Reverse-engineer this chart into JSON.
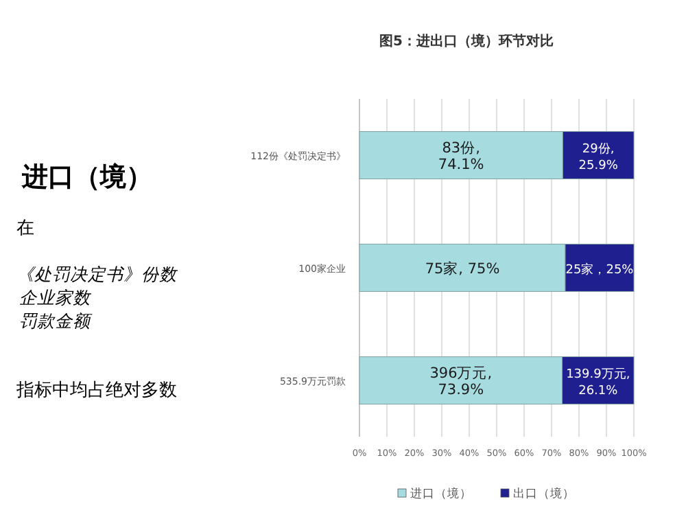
{
  "chart_data": {
    "type": "bar",
    "orientation": "horizontal",
    "stacked": true,
    "title": "图5：进出口（境）环节对比",
    "categories": [
      "112份《处罚决定书》",
      "100家企业",
      "535.9万元罚款"
    ],
    "series": [
      {
        "name": "进口（境）",
        "color": "#a6dce0",
        "values": [
          74.1,
          75,
          73.9
        ],
        "value_labels": [
          "83份,\n74.1%",
          "75家, 75%",
          "396万元,\n73.9%"
        ]
      },
      {
        "name": "出口（境）",
        "color": "#1f1f8f",
        "values": [
          25.9,
          25,
          26.1
        ],
        "value_labels": [
          "29份,\n25.9%",
          "25家，25%",
          "139.9万元,\n26.1%"
        ]
      }
    ],
    "xlim": [
      0,
      100
    ],
    "xticks": [
      {
        "value": 0,
        "label": "0%"
      },
      {
        "value": 10,
        "label": "10%"
      },
      {
        "value": 20,
        "label": "20%"
      },
      {
        "value": 30,
        "label": "30%"
      },
      {
        "value": 40,
        "label": "40%"
      },
      {
        "value": 50,
        "label": "50%"
      },
      {
        "value": 60,
        "label": "60%"
      },
      {
        "value": 70,
        "label": "70%"
      },
      {
        "value": 80,
        "label": "80%"
      },
      {
        "value": 90,
        "label": "90%"
      },
      {
        "value": 100,
        "label": "100%"
      }
    ],
    "grid": "x",
    "legend": "bottom",
    "annotations": [
      "进口（境）",
      "在",
      "《处罚决定书》份数",
      "企业家数",
      "罚款金额",
      "指标中均占绝对多数"
    ]
  }
}
